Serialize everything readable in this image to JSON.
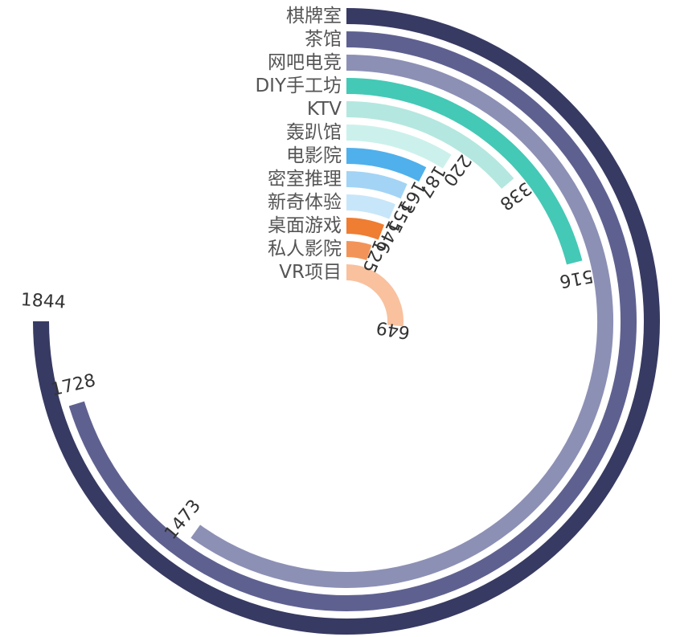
{
  "chart_data": {
    "type": "radial-bar",
    "title": "",
    "categories": [
      "棋牌室",
      "茶馆",
      "网吧电竞",
      "DIY手工坊",
      "KTV",
      "轰趴馆",
      "电影院",
      "密室推理",
      "新奇体验",
      "桌面游戏",
      "私人影院",
      "VR项目"
    ],
    "values": [
      1844,
      1728,
      1473,
      516,
      338,
      220,
      187,
      163,
      155,
      146,
      125,
      649
    ],
    "value_labels": [
      "1844",
      "1728",
      "1473",
      "516",
      "338",
      "220",
      "187",
      "163",
      "155",
      "146",
      "125",
      "649"
    ],
    "colors": [
      "#373a62",
      "#5e6190",
      "#8d90b5",
      "#44c9b6",
      "#b4e7df",
      "#ccf1ec",
      "#4fb0ec",
      "#a3d4f5",
      "#c8e6f9",
      "#ef7d32",
      "#f2945a",
      "#f9c19e"
    ],
    "legend": "none",
    "grid": false
  }
}
